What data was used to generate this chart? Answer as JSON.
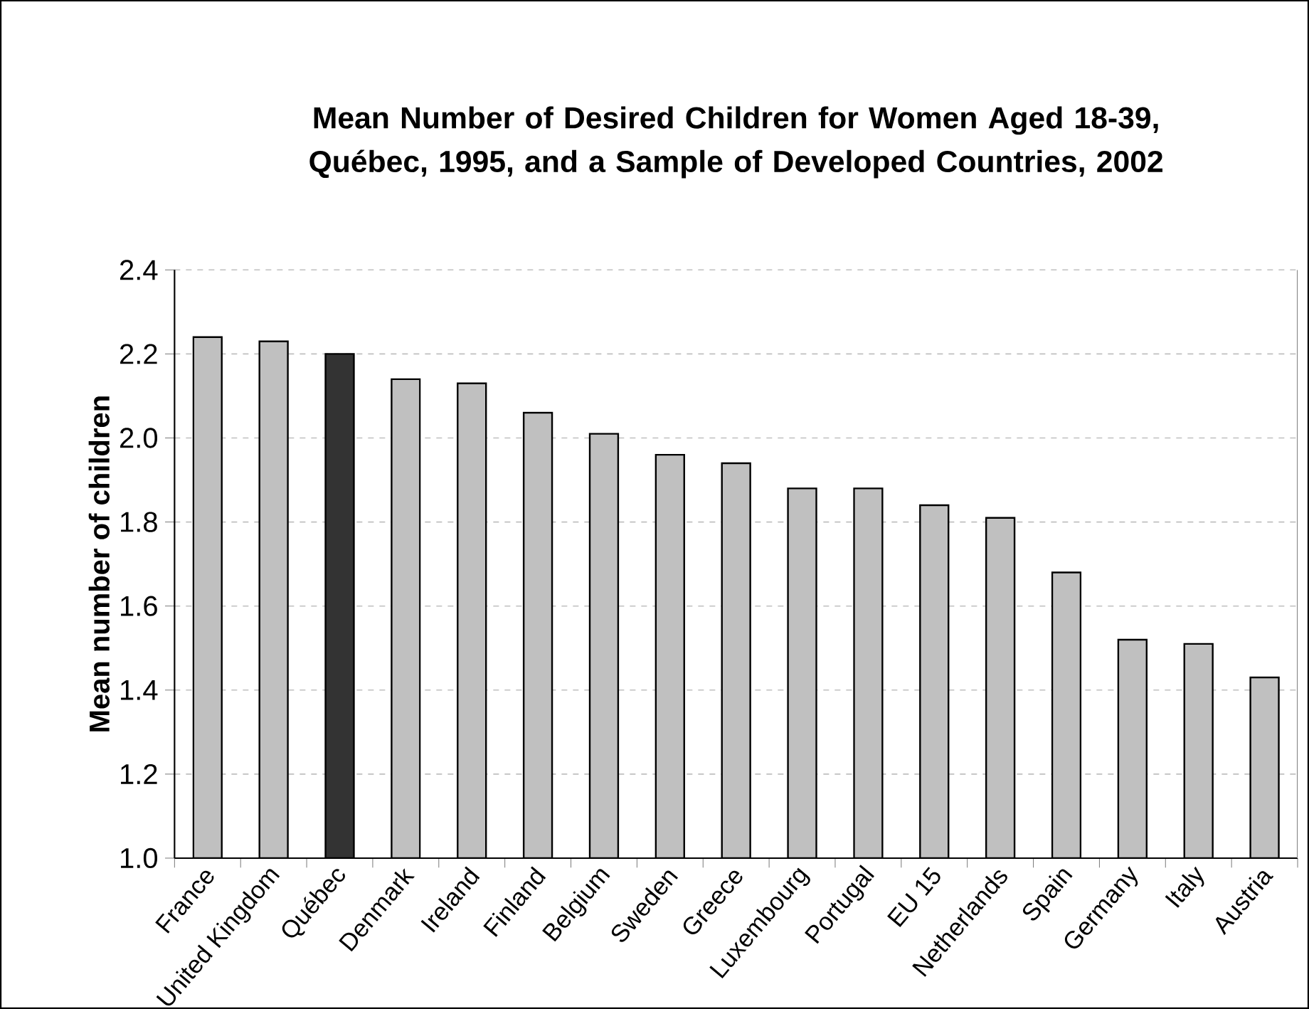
{
  "chart_data": {
    "type": "bar",
    "title": "Mean Number of Desired Children for Women Aged 18-39, Québec, 1995, and a Sample of Developed Countries, 2002",
    "ylabel": "Mean number of children",
    "categories": [
      "France",
      "United Kingdom",
      "Québec",
      "Denmark",
      "Ireland",
      "Finland",
      "Belgium",
      "Sweden",
      "Greece",
      "Luxembourg",
      "Portugal",
      "EU 15",
      "Netherlands",
      "Spain",
      "Germany",
      "Italy",
      "Austria"
    ],
    "values": [
      2.24,
      2.23,
      2.2,
      2.14,
      2.13,
      2.06,
      2.01,
      1.96,
      1.94,
      1.88,
      1.88,
      1.84,
      1.81,
      1.68,
      1.52,
      1.51,
      1.43
    ],
    "colors": [
      "#c0c0c0",
      "#c0c0c0",
      "#333333",
      "#c0c0c0",
      "#c0c0c0",
      "#c0c0c0",
      "#c0c0c0",
      "#c0c0c0",
      "#c0c0c0",
      "#c0c0c0",
      "#c0c0c0",
      "#c0c0c0",
      "#c0c0c0",
      "#c0c0c0",
      "#c0c0c0",
      "#c0c0c0",
      "#c0c0c0"
    ],
    "ylim": [
      1.0,
      2.4
    ],
    "yticks": [
      {
        "value": 1.0,
        "label": "1.0"
      },
      {
        "value": 1.2,
        "label": "1.2"
      },
      {
        "value": 1.4,
        "label": "1.4"
      },
      {
        "value": 1.6,
        "label": "1.6"
      },
      {
        "value": 1.8,
        "label": "1.8"
      },
      {
        "value": 2.0,
        "label": "2.0"
      },
      {
        "value": 2.2,
        "label": "2.2"
      },
      {
        "value": 2.4,
        "label": "2.4"
      }
    ],
    "grid": "y"
  }
}
